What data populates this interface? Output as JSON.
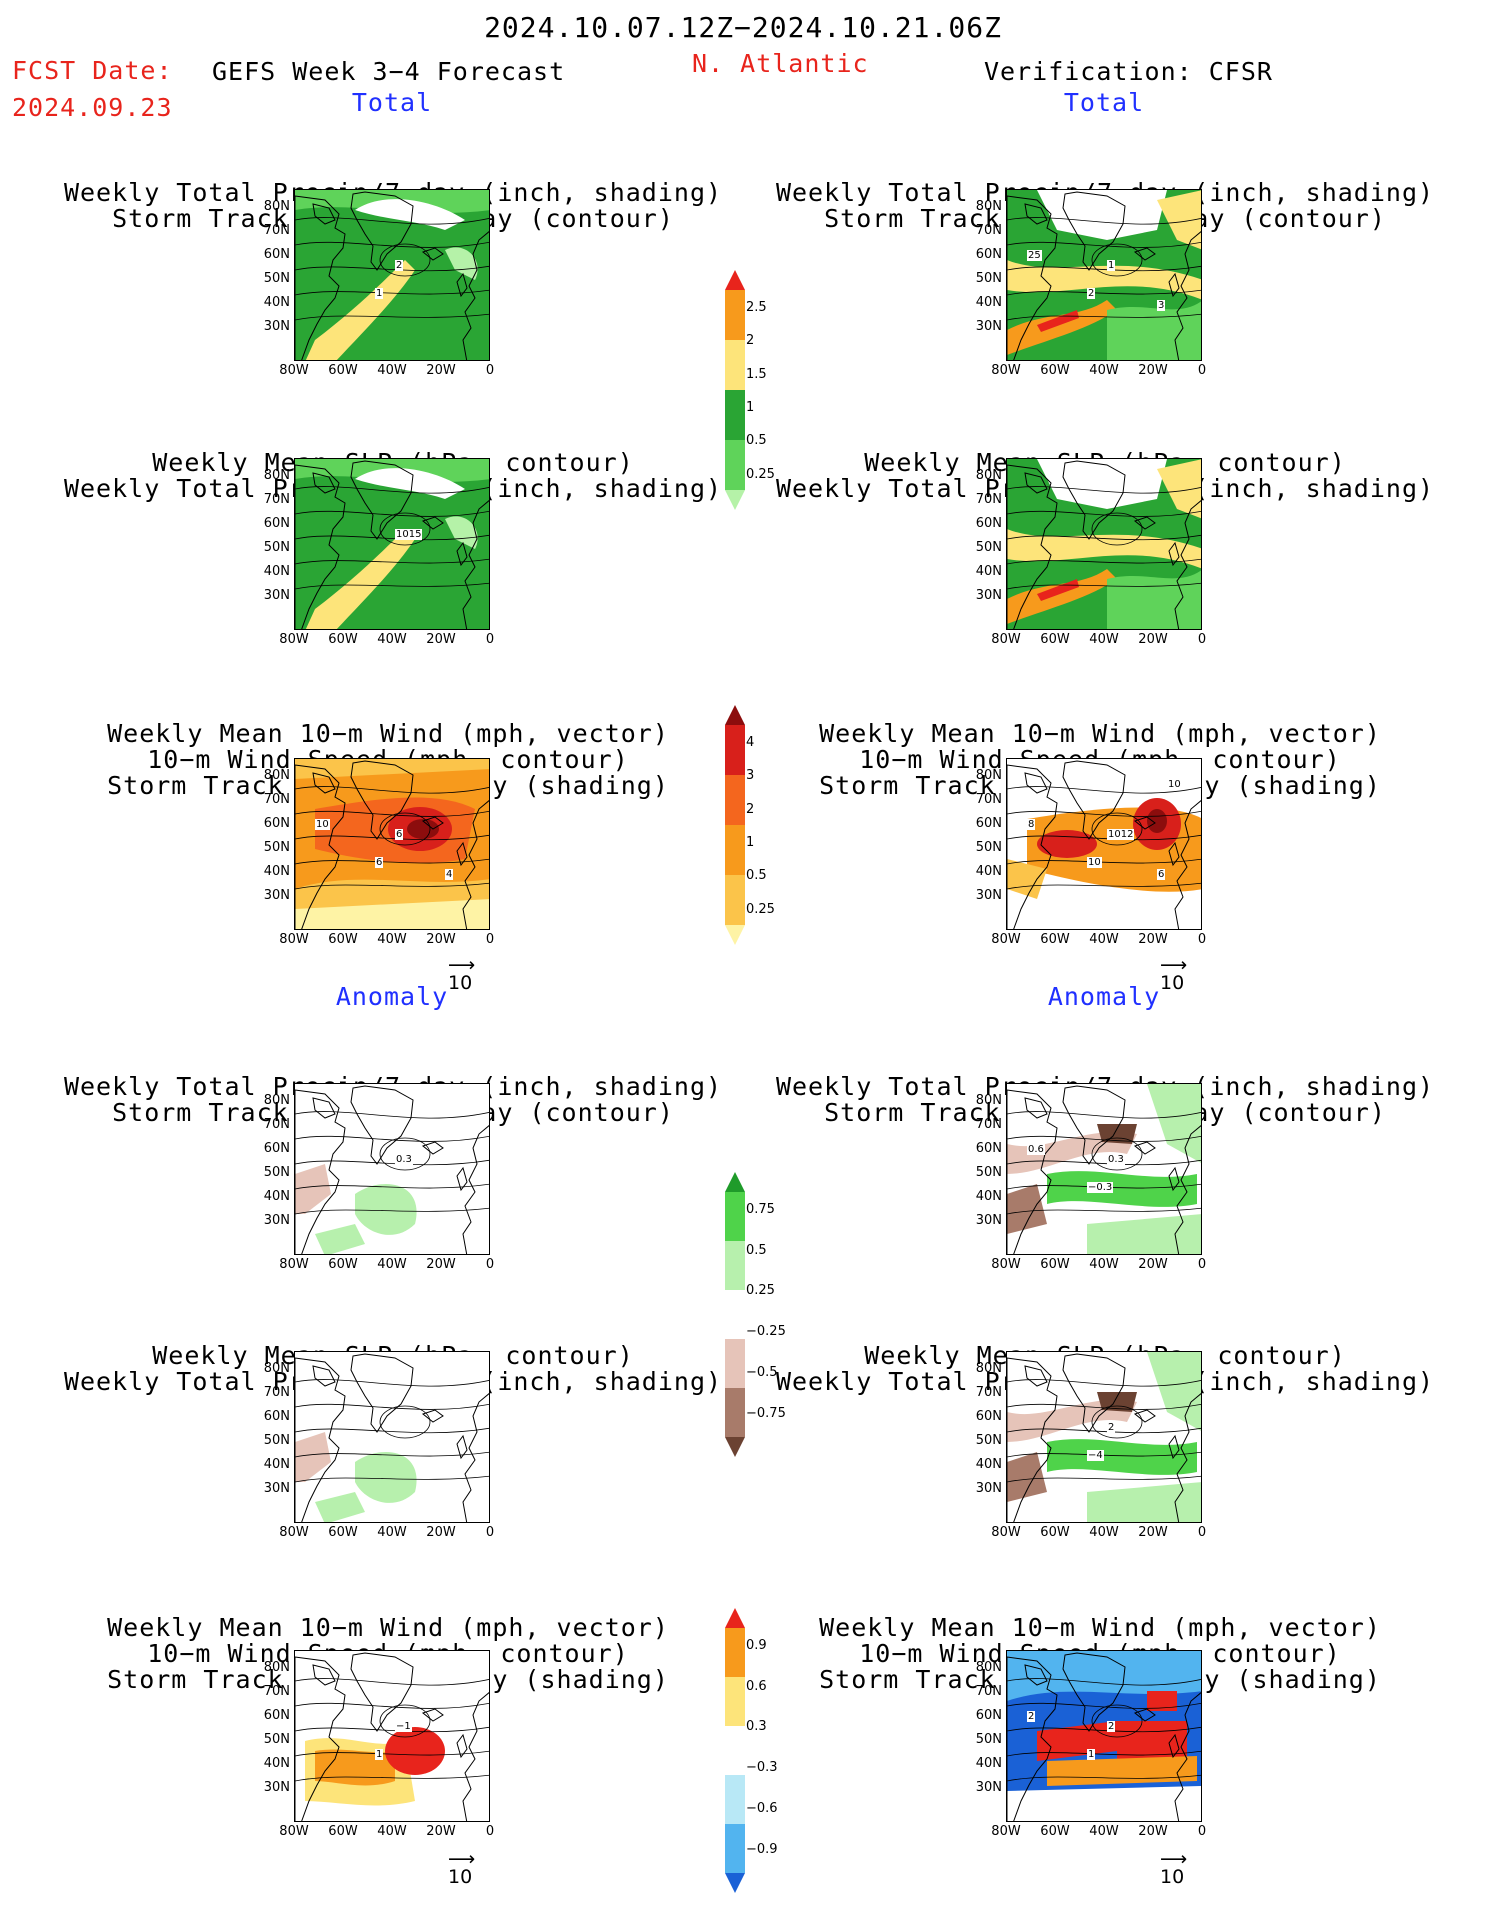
{
  "header": {
    "date_range": "2024.10.07.12Z−2024.10.21.06Z",
    "fcst_label": "FCST Date:",
    "fcst_date": "2024.09.23",
    "forecast_title": "GEFS Week 3−4 Forecast",
    "region": "N. Atlantic",
    "verification": "Verification: CFSR"
  },
  "sections": {
    "total": "Total",
    "anomaly": "Anomaly"
  },
  "titles": {
    "precip_track": [
      "Weekly Total Precip/7−day (inch, shading)",
      "Storm Track Density/7−day (contour)"
    ],
    "slp_precip": [
      "Weekly Mean SLP (hPa, contour)",
      "Weekly Total Precip/7−day (inch, shading)"
    ],
    "wind": [
      "Weekly Mean 10−m Wind (mph, vector)",
      "10−m Wind Speed (mph, contour)",
      "Storm Track Density/7−day (shading)"
    ]
  },
  "axes": {
    "lat": [
      "80N",
      "70N",
      "60N",
      "50N",
      "40N",
      "30N"
    ],
    "lon": [
      "80W",
      "60W",
      "40W",
      "20W",
      "0"
    ]
  },
  "vector_ref": "10",
  "colorbars": {
    "precip_total": {
      "labels": [
        "2.5",
        "2",
        "1.5",
        "1",
        "0.5",
        "0.25"
      ],
      "colors": [
        "#e8241c",
        "#f79a1c",
        "#fde47a",
        "#2aa534",
        "#5fd35a",
        "#b5f2a8"
      ]
    },
    "track_total": {
      "labels": [
        "4",
        "3",
        "2",
        "1",
        "0.5",
        "0.25"
      ],
      "colors": [
        "#8c0d0d",
        "#d8201b",
        "#f4661e",
        "#f79a1c",
        "#fbc44a",
        "#fef3a5"
      ]
    },
    "precip_anom": {
      "labels": [
        "0.75",
        "0.5",
        "0.25",
        "−0.25",
        "−0.5",
        "−0.75"
      ],
      "colors": [
        "#1f9b2a",
        "#4fd34a",
        "#b7f0ad",
        "#ffffff",
        "#e6c4b9",
        "#a87b6a",
        "#6b4232"
      ]
    },
    "track_anom": {
      "labels": [
        "0.9",
        "0.6",
        "0.3",
        "−0.3",
        "−0.6",
        "−0.9"
      ],
      "colors": [
        "#e8241c",
        "#f79a1c",
        "#fde47a",
        "#ffffff",
        "#b8e8f6",
        "#52b4ef",
        "#1a61d6"
      ]
    }
  },
  "contour_labels": {
    "fc_precip_total": [
      "2",
      "1"
    ],
    "ob_precip_total": [
      "1",
      "2",
      "25",
      "3"
    ],
    "fc_slp_total": [
      "1015"
    ],
    "fc_wind_total": [
      "6",
      "6",
      "10",
      "4"
    ],
    "ob_wind_total": [
      "1012",
      "10",
      "8",
      "6",
      "10"
    ],
    "fc_precip_anom": [
      "0.3"
    ],
    "ob_precip_anom": [
      "0.3",
      "−0.3",
      "0.6"
    ],
    "ob_slp_anom": [
      "2",
      "−4"
    ],
    "fc_wind_anom": [
      "−1",
      "1"
    ],
    "ob_wind_anom": [
      "2",
      "1",
      "2"
    ]
  }
}
